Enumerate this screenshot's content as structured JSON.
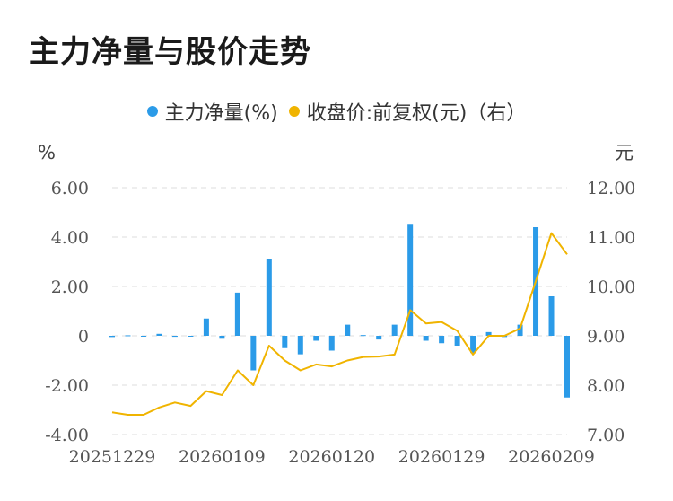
{
  "title": "主力净量与股价走势",
  "legend": [
    {
      "label": "主力净量(%)",
      "color": "#2b9be8"
    },
    {
      "label": "收盘价:前复权(元)（右）",
      "color": "#f0b400"
    }
  ],
  "chart_data": {
    "type": "bar+line",
    "left_unit": "%",
    "right_unit": "元",
    "left_ticks": [
      "6.00",
      "4.00",
      "2.00",
      "0",
      "-2.00",
      "-4.00"
    ],
    "right_ticks": [
      "12.00",
      "11.00",
      "10.00",
      "9.00",
      "8.00",
      "7.00"
    ],
    "ylim_left": [
      -4,
      6
    ],
    "ylim_right": [
      7,
      12
    ],
    "x_tick_labels": [
      "20251229",
      "20260109",
      "20260120",
      "20260129",
      "20260209"
    ],
    "x_tick_index": [
      0,
      7,
      14,
      21,
      28
    ],
    "series": [
      {
        "name": "主力净量(%)",
        "type": "bar",
        "axis": "left",
        "values": [
          -0.05,
          0.02,
          -0.03,
          0.08,
          -0.04,
          -0.03,
          0.7,
          -0.12,
          1.75,
          -1.4,
          3.1,
          -0.5,
          -0.75,
          -0.2,
          -0.6,
          0.45,
          0.03,
          -0.15,
          0.45,
          4.5,
          -0.2,
          -0.3,
          -0.4,
          -0.7,
          0.15,
          -0.05,
          0.45,
          4.4,
          1.6,
          -2.5
        ]
      },
      {
        "name": "收盘价:前复权(元)（右）",
        "type": "line",
        "axis": "right",
        "values": [
          7.45,
          7.4,
          7.4,
          7.55,
          7.65,
          7.58,
          7.88,
          7.8,
          8.3,
          8.0,
          8.8,
          8.5,
          8.3,
          8.42,
          8.38,
          8.5,
          8.57,
          8.58,
          8.62,
          9.52,
          9.25,
          9.28,
          9.1,
          8.62,
          9.0,
          9.0,
          9.15,
          10.1,
          11.08,
          10.65
        ]
      }
    ],
    "grid": true
  }
}
